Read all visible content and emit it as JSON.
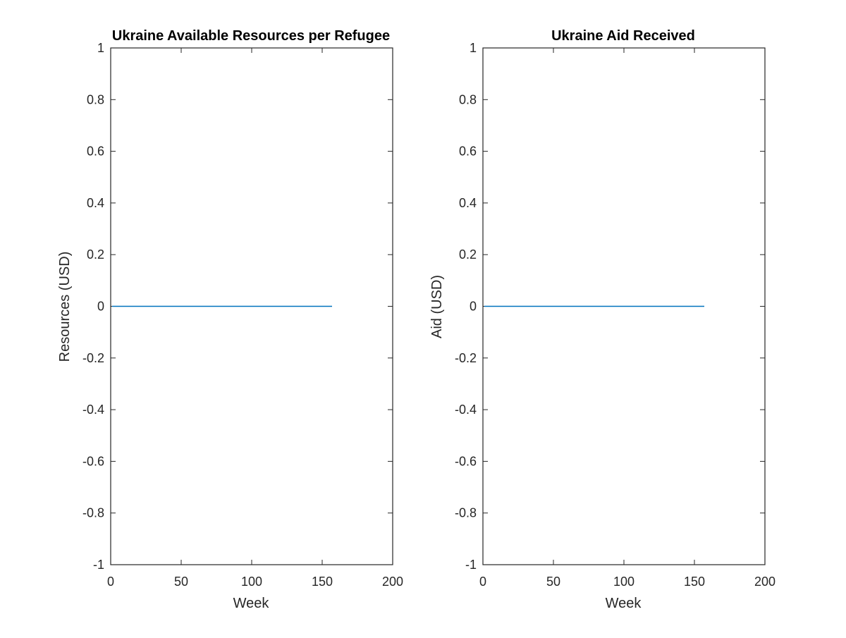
{
  "chart_data": [
    {
      "type": "line",
      "title": "Ukraine Available Resources per Refugee",
      "xlabel": "Week",
      "ylabel": "Resources (USD)",
      "xlim": [
        0,
        200
      ],
      "ylim": [
        -1,
        1
      ],
      "xticks": [
        0,
        50,
        100,
        150,
        200
      ],
      "yticks": [
        -1,
        -0.8,
        -0.6,
        -0.4,
        -0.2,
        0,
        0.2,
        0.4,
        0.6,
        0.8,
        1
      ],
      "xtick_labels": [
        "0",
        "50",
        "100",
        "150",
        "200"
      ],
      "ytick_labels": [
        "-1",
        "-0.8",
        "-0.6",
        "-0.4",
        "-0.2",
        "0",
        "0.2",
        "0.4",
        "0.6",
        "0.8",
        "1"
      ],
      "grid": false,
      "series": [
        {
          "color": "#0072BD",
          "x": [
            1,
            157
          ],
          "y": [
            0,
            0
          ]
        }
      ]
    },
    {
      "type": "line",
      "title": "Ukraine Aid Received",
      "xlabel": "Week",
      "ylabel": "Aid (USD)",
      "xlim": [
        0,
        200
      ],
      "ylim": [
        -1,
        1
      ],
      "xticks": [
        0,
        50,
        100,
        150,
        200
      ],
      "yticks": [
        -1,
        -0.8,
        -0.6,
        -0.4,
        -0.2,
        0,
        0.2,
        0.4,
        0.6,
        0.8,
        1
      ],
      "xtick_labels": [
        "0",
        "50",
        "100",
        "150",
        "200"
      ],
      "ytick_labels": [
        "-1",
        "-0.8",
        "-0.6",
        "-0.4",
        "-0.2",
        "0",
        "0.2",
        "0.4",
        "0.6",
        "0.8",
        "1"
      ],
      "grid": false,
      "series": [
        {
          "color": "#0072BD",
          "x": [
            1,
            157
          ],
          "y": [
            0,
            0
          ]
        }
      ]
    }
  ]
}
